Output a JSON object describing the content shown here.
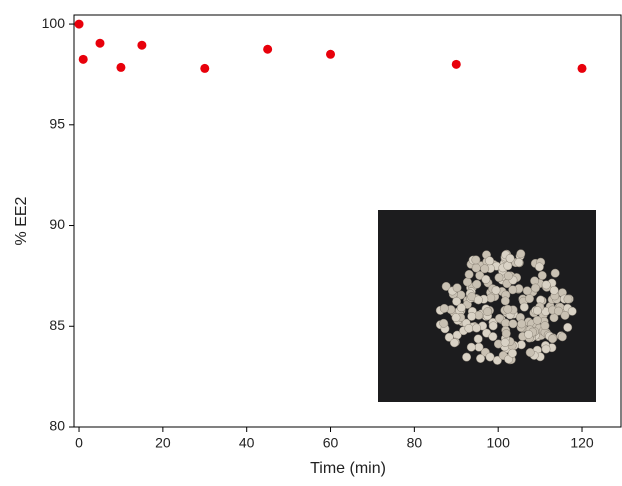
{
  "chart_data": {
    "type": "scatter",
    "x_label": "Time (min)",
    "y_label": "% EE2",
    "x": [
      0,
      1,
      5,
      10,
      15,
      30,
      45,
      60,
      90,
      120
    ],
    "series": [
      {
        "color": "#e8000b",
        "values": [
          100,
          98.25,
          99.05,
          97.85,
          98.95,
          97.8,
          98.75,
          98.5,
          98.0,
          97.8
        ]
      }
    ],
    "xlim": [
      -1.2,
      129.3
    ],
    "ylim": [
      80,
      100.45
    ],
    "xticks": [
      0,
      20,
      40,
      60,
      80,
      100,
      120
    ],
    "yticks": [
      80,
      85,
      90,
      95,
      100
    ]
  }
}
